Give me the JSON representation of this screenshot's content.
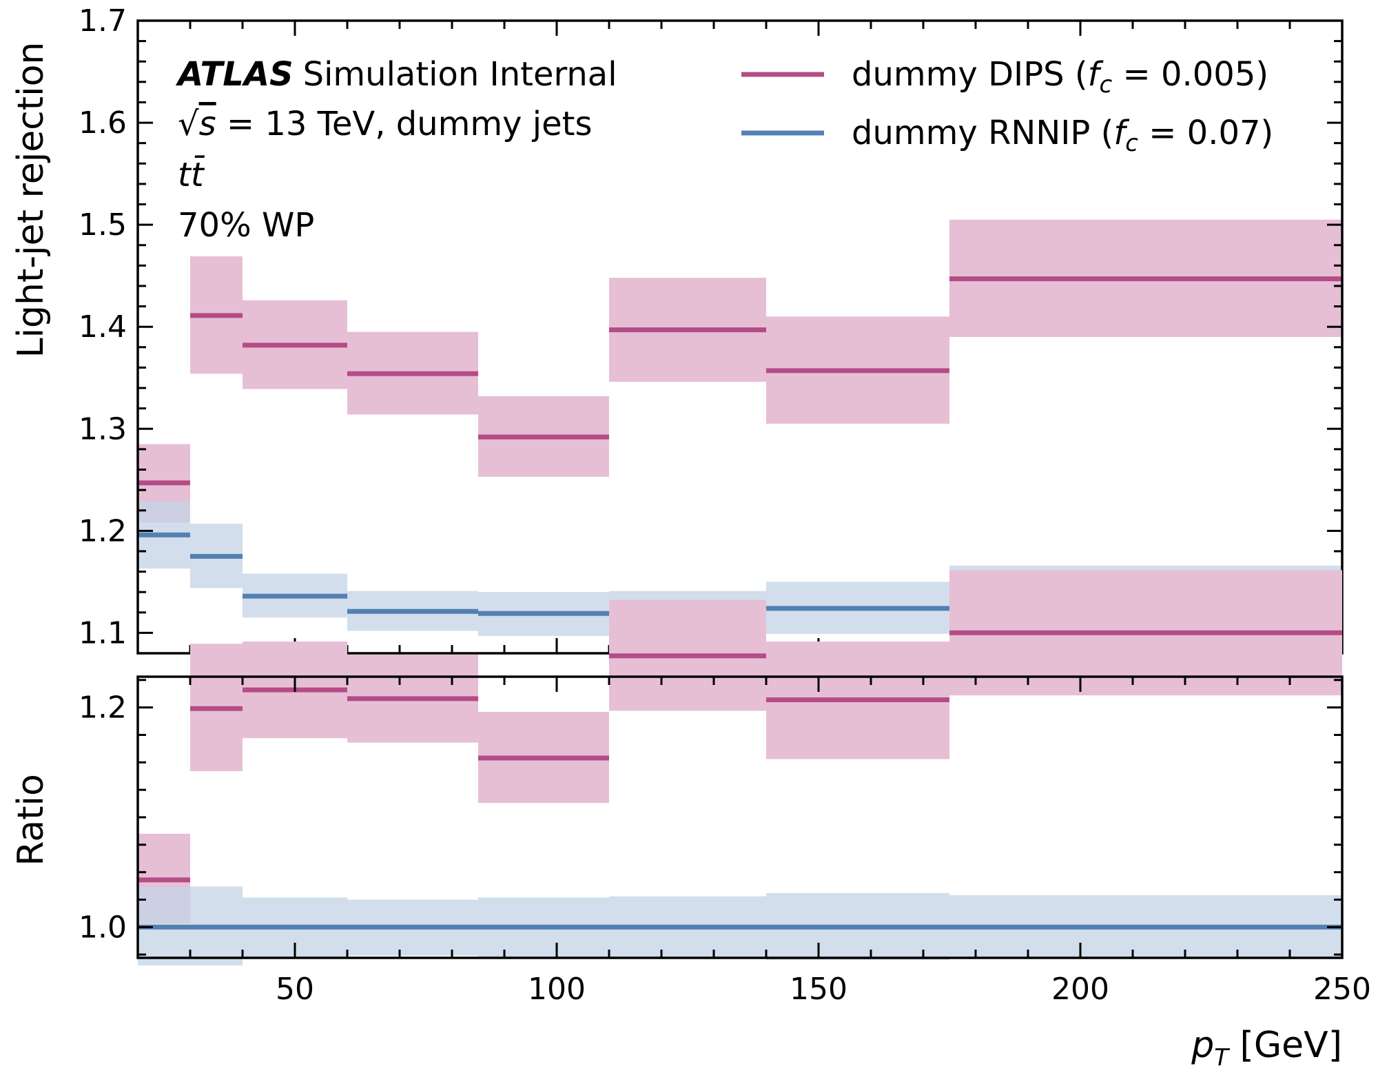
{
  "colors": {
    "dips": "#b44c86",
    "dips_band": "#e6bfd5",
    "rnnip": "#5380b2",
    "rnnip_band": "#c5d5e6"
  },
  "atlas_label": {
    "atlas": "ATLAS",
    "status": "Simulation Internal",
    "energy_sqrt": "√",
    "energy_s": "s",
    "energy_rest": " = 13 TeV, dummy jets",
    "sample": "tt̄",
    "wp": "70% WP"
  },
  "legend": [
    {
      "series": "DIPS",
      "text": "dummy DIPS (",
      "fc_sym": "f",
      "fc_sub": "c",
      "fc_rest": " = 0.005)"
    },
    {
      "series": "RNNIP",
      "text": "dummy RNNIP (",
      "fc_sym": "f",
      "fc_sub": "c",
      "fc_rest": " = 0.07)"
    }
  ],
  "chart_data": [
    {
      "type": "line",
      "panel": "main",
      "xlabel": "p_T [GeV]",
      "ylabel": "Light-jet rejection",
      "xlim": [
        20,
        250
      ],
      "ylim": [
        1.08,
        1.7
      ],
      "x_ticks": [
        50,
        100,
        150,
        200,
        250
      ],
      "y_ticks": [
        1.1,
        1.2,
        1.3,
        1.4,
        1.5,
        1.6,
        1.7
      ],
      "y_tick_labels": [
        "1.1",
        "1.2",
        "1.3",
        "1.4",
        "1.5",
        "1.6",
        "1.7"
      ],
      "bin_edges": [
        20,
        30,
        40,
        60,
        85,
        110,
        140,
        175,
        250
      ],
      "legend_position": "upper-right",
      "series": [
        {
          "name": "dummy DIPS (f_c = 0.005)",
          "values": [
            1.247,
            1.411,
            1.382,
            1.354,
            1.292,
            1.397,
            1.357,
            1.447
          ],
          "band_low": [
            1.208,
            1.354,
            1.339,
            1.314,
            1.253,
            1.346,
            1.305,
            1.39
          ],
          "band_high": [
            1.285,
            1.469,
            1.426,
            1.395,
            1.332,
            1.448,
            1.41,
            1.505
          ]
        },
        {
          "name": "dummy RNNIP (f_c = 0.07)",
          "values": [
            1.196,
            1.175,
            1.136,
            1.121,
            1.119,
            1.119,
            1.124,
            1.14
          ],
          "band_low": [
            1.163,
            1.144,
            1.115,
            1.102,
            1.097,
            1.097,
            1.099,
            1.114
          ],
          "band_high": [
            1.229,
            1.207,
            1.158,
            1.141,
            1.14,
            1.141,
            1.15,
            1.166
          ]
        }
      ]
    },
    {
      "type": "line",
      "panel": "ratio",
      "xlabel": "p_T [GeV]",
      "ylabel": "Ratio",
      "xlim": [
        20,
        250
      ],
      "ylim": [
        0.972,
        1.228
      ],
      "x_ticks": [
        50,
        100,
        150,
        200,
        250
      ],
      "x_tick_labels": [
        "50",
        "100",
        "150",
        "200",
        "250"
      ],
      "y_ticks": [
        1.0,
        1.2
      ],
      "y_tick_labels": [
        "1.0",
        "1.2"
      ],
      "bin_edges": [
        20,
        30,
        40,
        60,
        85,
        110,
        140,
        175,
        250
      ],
      "series": [
        {
          "name": "dummy DIPS (f_c = 0.005)",
          "values": [
            1.043,
            1.199,
            1.216,
            1.208,
            1.154,
            1.247,
            1.207,
            1.268
          ],
          "band_low": [
            1.003,
            1.142,
            1.172,
            1.168,
            1.113,
            1.197,
            1.153,
            1.211
          ],
          "band_high": [
            1.085,
            1.258,
            1.26,
            1.248,
            1.196,
            1.298,
            1.26,
            1.325
          ]
        },
        {
          "name": "dummy RNNIP (f_c = 0.07)",
          "values": [
            1.0,
            1.0,
            1.0,
            1.0,
            1.0,
            1.0,
            1.0,
            1.0
          ],
          "band_low": [
            0.965,
            0.965,
            0.973,
            0.974,
            0.971,
            0.971,
            0.97,
            0.971
          ],
          "band_high": [
            1.037,
            1.037,
            1.027,
            1.025,
            1.027,
            1.028,
            1.031,
            1.029
          ]
        }
      ]
    }
  ]
}
